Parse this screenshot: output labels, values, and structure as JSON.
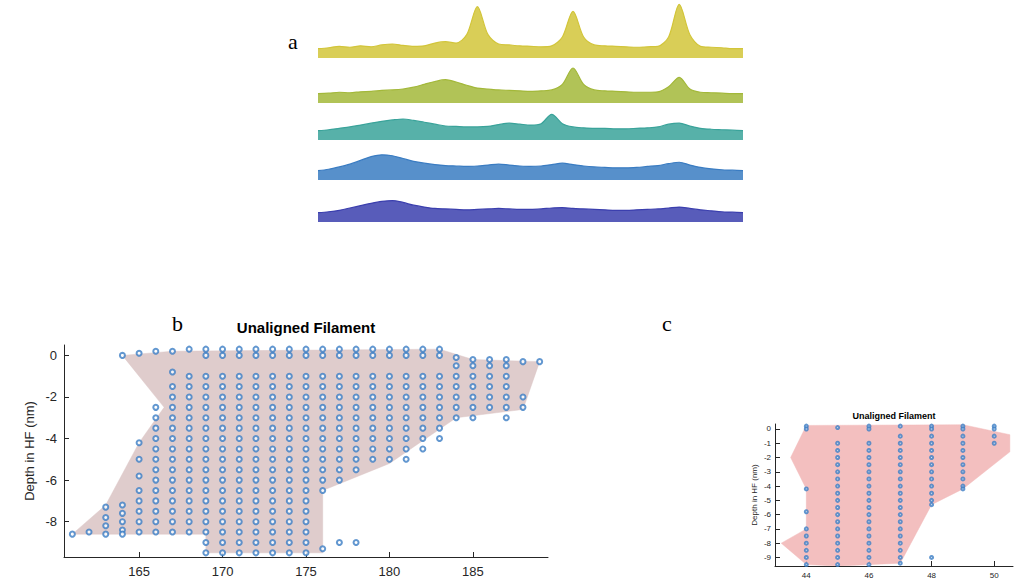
{
  "chart_data": [
    {
      "type": "line",
      "panel_label": "a",
      "tick_labels": false,
      "x": [
        0,
        1,
        2,
        3,
        4,
        5,
        6,
        7,
        8,
        9,
        10,
        11,
        12,
        13,
        14,
        15,
        16,
        17,
        18,
        19,
        20,
        21,
        22,
        23,
        24,
        25,
        26,
        27,
        28,
        29,
        30,
        31,
        32,
        33,
        34,
        35,
        36,
        37,
        38,
        39,
        40
      ],
      "xlim": [
        0,
        40
      ],
      "ylim": [
        0,
        12
      ],
      "series": [
        {
          "color": "#d2c53a",
          "values": [
            2,
            2.2,
            2.5,
            2.3,
            2.6,
            2.4,
            2.8,
            3,
            2.7,
            2.5,
            2.6,
            3.2,
            3.5,
            3.2,
            5,
            11,
            5,
            3,
            2.8,
            2.6,
            2.5,
            2.4,
            2.6,
            4.5,
            10,
            4.5,
            2.8,
            2.6,
            2.5,
            2.4,
            2.3,
            2.4,
            2.5,
            4.5,
            11.5,
            5,
            2.5,
            2.3,
            2.2,
            2,
            2
          ]
        },
        {
          "color": "#a3b83a",
          "values": [
            2,
            2.1,
            2.3,
            2.2,
            2.4,
            2.5,
            2.7,
            2.8,
            3,
            3.4,
            4,
            4.6,
            5,
            4.5,
            3.8,
            3.2,
            3,
            2.8,
            2.7,
            2.6,
            2.5,
            2.6,
            2.8,
            4,
            7.5,
            4,
            2.8,
            2.6,
            2.5,
            2.4,
            2.3,
            2.3,
            2.4,
            3.5,
            5.5,
            3,
            2.3,
            2.2,
            2.1,
            2,
            2
          ]
        },
        {
          "color": "#3aa39a",
          "values": [
            2,
            2.2,
            2.5,
            2.8,
            3.2,
            3.6,
            4,
            4.3,
            4.5,
            4.2,
            3.8,
            3.4,
            3,
            2.9,
            2.8,
            2.8,
            2.9,
            3.3,
            3.6,
            3.4,
            3.2,
            3.5,
            5.5,
            3.5,
            2.8,
            2.6,
            2.5,
            2.5,
            2.4,
            2.4,
            2.5,
            2.6,
            2.8,
            3.4,
            3.6,
            3,
            2.5,
            2.3,
            2.2,
            2.1,
            2
          ]
        },
        {
          "color": "#3a7cc2",
          "values": [
            2,
            2.3,
            2.8,
            3.4,
            4.2,
            5,
            5.4,
            5.2,
            4.6,
            4,
            3.6,
            3.3,
            3.1,
            3,
            2.9,
            3,
            3.2,
            3.4,
            3.2,
            3,
            2.9,
            3,
            3.3,
            3.6,
            3.3,
            3,
            2.8,
            2.7,
            2.6,
            2.6,
            2.7,
            2.9,
            3.1,
            3.5,
            3.8,
            3.2,
            2.7,
            2.4,
            2.2,
            2.1,
            2
          ]
        },
        {
          "color": "#3b3fae",
          "values": [
            2,
            2.2,
            2.5,
            3,
            3.5,
            4,
            4.4,
            4.6,
            4.2,
            3.6,
            3.2,
            2.9,
            2.8,
            2.7,
            2.6,
            2.7,
            2.8,
            2.9,
            2.8,
            2.7,
            2.7,
            2.8,
            3,
            3.1,
            2.9,
            2.8,
            2.7,
            2.6,
            2.5,
            2.5,
            2.6,
            2.7,
            2.8,
            3,
            3.2,
            2.9,
            2.6,
            2.4,
            2.2,
            2.1,
            2
          ]
        }
      ]
    },
    {
      "type": "scatter",
      "panel_label": "b",
      "title": "Unaligned Filament",
      "ylabel": "Depth in HF (nm)",
      "xlim": [
        160.5,
        189.5
      ],
      "xticks": [
        165,
        170,
        175,
        180,
        185
      ],
      "ylim": [
        -9.7,
        0.5
      ],
      "yticks": [
        -8,
        -6,
        -4,
        -2,
        0
      ],
      "grid": false,
      "series": [
        {
          "type": "polygon",
          "color": "#dcc6c6",
          "x": [
            161,
            163,
            165,
            166.5,
            164,
            167,
            183,
            185,
            189,
            188,
            184,
            180,
            176,
            176,
            169,
            169
          ],
          "y": [
            -8.6,
            -7.2,
            -4.2,
            -2.5,
            0,
            0.2,
            0.3,
            -0.2,
            -0.3,
            -2.6,
            -3,
            -5.2,
            -6.5,
            -9.5,
            -9.5,
            -8.6
          ]
        },
        {
          "type": "scatter",
          "color": "#3b7dc4",
          "marker": "circle",
          "columns": [
            {
              "x": 161,
              "y": [
                -8.6
              ]
            },
            {
              "x": 162,
              "y": [
                -8.5
              ]
            },
            {
              "x": 163,
              "y": [
                -7.3,
                -7.8,
                -8.2,
                -8.6
              ]
            },
            {
              "x": 164,
              "y": [
                0,
                -7.2,
                -7.6,
                -8,
                -8.4,
                -8.6
              ]
            },
            {
              "x": 165,
              "y": [
                0.1,
                -4.2,
                -5,
                -5.8,
                -6.5,
                -7,
                -7.5,
                -8,
                -8.5
              ]
            },
            {
              "x": 166,
              "y": [
                0.2,
                -2.5,
                -3,
                -3.5,
                -4,
                -4.5,
                -5,
                -5.5,
                -6,
                -6.5,
                -7,
                -7.5,
                -8,
                -8.5
              ]
            },
            {
              "x": 167,
              "y": [
                0.2,
                -0.8,
                -1.5,
                -2,
                -2.5,
                -3,
                -3.5,
                -4,
                -4.5,
                -5,
                -5.5,
                -6,
                -6.5,
                -7,
                -7.5,
                -8,
                -8.5
              ]
            },
            {
              "x": 168,
              "y": [
                0.3,
                -1,
                -1.5,
                -2,
                -2.5,
                -3,
                -3.5,
                -4,
                -4.5,
                -5,
                -5.5,
                -6,
                -6.5,
                -7,
                -7.5,
                -8,
                -8.5
              ]
            },
            {
              "x": 169,
              "y": [
                0.3,
                0,
                -1,
                -1.5,
                -2,
                -2.5,
                -3,
                -3.5,
                -4,
                -4.5,
                -5,
                -5.5,
                -6,
                -6.5,
                -7,
                -7.5,
                -8,
                -8.5,
                -9,
                -9.5
              ]
            },
            {
              "x": 170,
              "y": [
                0.3,
                0,
                -1,
                -1.5,
                -2,
                -2.5,
                -3,
                -3.5,
                -4,
                -4.5,
                -5,
                -5.5,
                -6,
                -6.5,
                -7,
                -7.5,
                -8,
                -8.5,
                -9,
                -9.5
              ]
            },
            {
              "x": 171,
              "y": [
                0.3,
                0,
                -1,
                -1.5,
                -2,
                -2.5,
                -3,
                -3.5,
                -4,
                -4.5,
                -5,
                -5.5,
                -6,
                -6.5,
                -7,
                -7.5,
                -8,
                -8.5,
                -9,
                -9.5
              ]
            },
            {
              "x": 172,
              "y": [
                0.3,
                0,
                -1,
                -1.5,
                -2,
                -2.5,
                -3,
                -3.5,
                -4,
                -4.5,
                -5,
                -5.5,
                -6,
                -6.5,
                -7,
                -7.5,
                -8,
                -8.5,
                -9,
                -9.5
              ]
            },
            {
              "x": 173,
              "y": [
                0.3,
                0,
                -1,
                -1.5,
                -2,
                -2.5,
                -3,
                -3.5,
                -4,
                -4.5,
                -5,
                -5.5,
                -6,
                -6.5,
                -7,
                -7.5,
                -8,
                -8.5,
                -9,
                -9.5
              ]
            },
            {
              "x": 174,
              "y": [
                0.3,
                0,
                -1,
                -1.5,
                -2,
                -2.5,
                -3,
                -3.5,
                -4,
                -4.5,
                -5,
                -5.5,
                -6,
                -6.5,
                -7,
                -7.5,
                -8,
                -8.5,
                -9,
                -9.5
              ]
            },
            {
              "x": 175,
              "y": [
                0.3,
                0,
                -1,
                -1.5,
                -2,
                -2.5,
                -3,
                -3.5,
                -4,
                -4.5,
                -5,
                -5.5,
                -6,
                -6.5,
                -7,
                -7.5,
                -8,
                -8.5,
                -9,
                -9.5
              ]
            },
            {
              "x": 176,
              "y": [
                0.3,
                0,
                -1,
                -1.5,
                -2,
                -2.5,
                -3,
                -3.5,
                -4,
                -4.5,
                -5,
                -5.5,
                -6,
                -6.5,
                -9.3
              ]
            },
            {
              "x": 177,
              "y": [
                0.3,
                0,
                -1,
                -1.5,
                -2,
                -2.5,
                -3,
                -3.5,
                -4,
                -4.5,
                -5,
                -5.5,
                -6,
                -9
              ]
            },
            {
              "x": 178,
              "y": [
                0.3,
                0,
                -1,
                -1.5,
                -2,
                -2.5,
                -3,
                -3.5,
                -4,
                -4.5,
                -5,
                -5.5,
                -9
              ]
            },
            {
              "x": 179,
              "y": [
                0.3,
                0,
                -1,
                -1.5,
                -2,
                -2.5,
                -3,
                -3.5,
                -4,
                -4.5,
                -5
              ]
            },
            {
              "x": 180,
              "y": [
                0.3,
                0,
                -1,
                -1.5,
                -2,
                -2.5,
                -3,
                -3.5,
                -4,
                -4.5,
                -5
              ]
            },
            {
              "x": 181,
              "y": [
                0.3,
                0,
                -1,
                -1.5,
                -2,
                -2.5,
                -3,
                -3.5,
                -4,
                -4.5,
                -5
              ]
            },
            {
              "x": 182,
              "y": [
                0.3,
                0,
                -1,
                -1.5,
                -2,
                -2.5,
                -3,
                -3.5,
                -4,
                -4.5
              ]
            },
            {
              "x": 183,
              "y": [
                0.3,
                0,
                -1,
                -1.5,
                -2,
                -2.5,
                -3,
                -3.5,
                -4
              ]
            },
            {
              "x": 184,
              "y": [
                -0.1,
                -0.5,
                -1,
                -1.5,
                -2,
                -2.5,
                -3
              ]
            },
            {
              "x": 185,
              "y": [
                -0.2,
                -0.5,
                -1,
                -1.5,
                -2,
                -2.5,
                -3
              ]
            },
            {
              "x": 186,
              "y": [
                -0.2,
                -0.5,
                -1,
                -1.5,
                -2,
                -2.5
              ]
            },
            {
              "x": 187,
              "y": [
                -0.2,
                -0.5,
                -1,
                -1.5,
                -2,
                -2.5,
                -3
              ]
            },
            {
              "x": 188,
              "y": [
                -0.3,
                -2,
                -2.5
              ]
            },
            {
              "x": 189,
              "y": [
                -0.3
              ]
            }
          ]
        }
      ]
    },
    {
      "type": "scatter",
      "panel_label": "c",
      "title": "Unaligned Filament",
      "ylabel": "Depth in HF (nm)",
      "xlim": [
        43,
        50.6
      ],
      "xticks": [
        44,
        46,
        48,
        50
      ],
      "ylim": [
        -9.6,
        0.35
      ],
      "yticks": [
        -9,
        -8,
        -7,
        -6,
        -5,
        -4,
        -3,
        -2,
        -1,
        0
      ],
      "grid": false,
      "series": [
        {
          "type": "polygon",
          "color": "#f2b8b8",
          "x": [
            44,
            49,
            50.5,
            50.5,
            49,
            48,
            47,
            45,
            44,
            43.2,
            44,
            44,
            43.5
          ],
          "y": [
            0.25,
            0.3,
            -0.4,
            -1.6,
            -4.2,
            -5.3,
            -9.4,
            -9.6,
            -9.5,
            -8,
            -7,
            -4.2,
            -2
          ]
        },
        {
          "type": "scatter",
          "color": "#3b7dc4",
          "marker": "circle",
          "columns": [
            {
              "x": 44,
              "y": [
                0.2,
                0,
                -4.2,
                -5.8,
                -7,
                -7.5,
                -8,
                -8.5,
                -9,
                -9.5
              ]
            },
            {
              "x": 45,
              "y": [
                0.1,
                -1,
                -1.5,
                -2,
                -2.5,
                -3,
                -3.5,
                -4,
                -4.5,
                -5,
                -5.5,
                -6,
                -6.5,
                -7,
                -7.5,
                -8,
                -8.5,
                -9,
                -9.5
              ]
            },
            {
              "x": 46,
              "y": [
                0.2,
                0,
                -1,
                -1.5,
                -2,
                -2.5,
                -3,
                -3.5,
                -4,
                -4.5,
                -5,
                -5.5,
                -6,
                -6.5,
                -7,
                -7.5,
                -8,
                -8.5,
                -9,
                -9.5
              ]
            },
            {
              "x": 47,
              "y": [
                0.2,
                -0.5,
                -1,
                -1.5,
                -2,
                -2.5,
                -3,
                -3.5,
                -4,
                -4.5,
                -5,
                -5.5,
                -6,
                -6.5,
                -7,
                -7.5,
                -8,
                -8.5,
                -9,
                -9.4
              ]
            },
            {
              "x": 48,
              "y": [
                0.2,
                0,
                -0.5,
                -1,
                -1.5,
                -2,
                -2.5,
                -3,
                -3.5,
                -4,
                -4.5,
                -5,
                -5.3,
                -9
              ]
            },
            {
              "x": 49,
              "y": [
                0.2,
                0,
                -0.5,
                -1,
                -1.5,
                -2,
                -2.5,
                -3,
                -3.5,
                -4,
                -4.2
              ]
            },
            {
              "x": 50,
              "y": [
                0.2,
                0,
                -0.5,
                -1
              ]
            }
          ]
        }
      ]
    }
  ]
}
